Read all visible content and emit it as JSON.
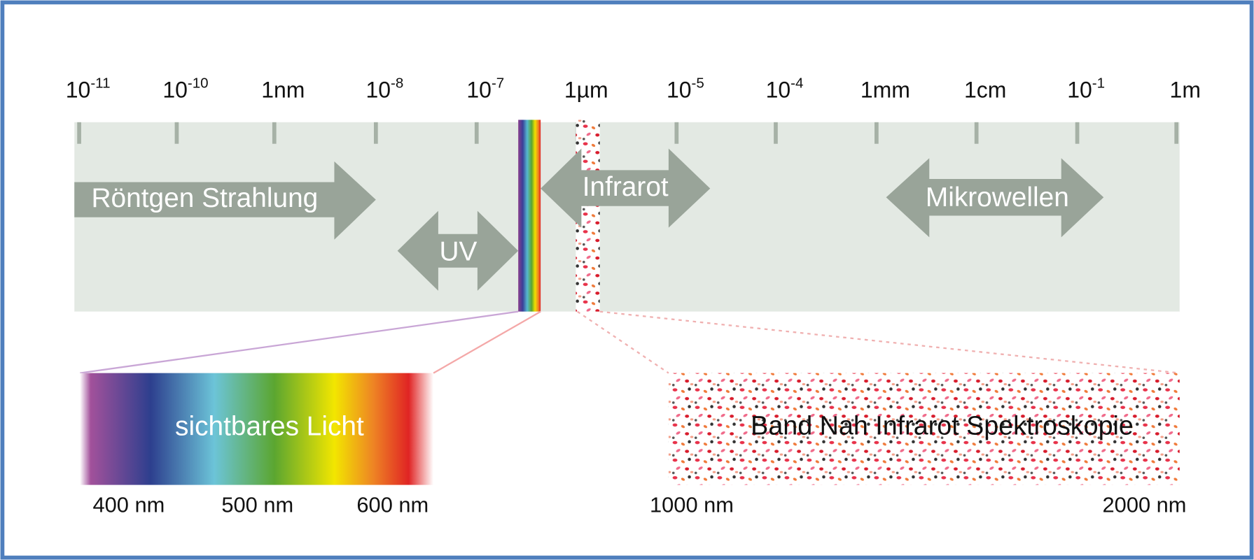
{
  "scale": {
    "ticks": [
      {
        "base": "10",
        "exp": "-11"
      },
      {
        "base": "10",
        "exp": "-10"
      },
      {
        "text": "1nm"
      },
      {
        "base": "10",
        "exp": "-8"
      },
      {
        "base": "10",
        "exp": "-7"
      },
      {
        "text": "1µm"
      },
      {
        "base": "10",
        "exp": "-5"
      },
      {
        "base": "10",
        "exp": "-4"
      },
      {
        "text": "1mm"
      },
      {
        "text": "1cm"
      },
      {
        "base": "10",
        "exp": "-1"
      },
      {
        "text": "1m"
      }
    ]
  },
  "bands": {
    "xray": "Röntgen Strahlung",
    "uv": "UV",
    "infrared": "Infrarot",
    "microwave": "Mikrowellen"
  },
  "visible": {
    "label": "sichtbares Licht",
    "ticks": [
      "400 nm",
      "500 nm",
      "600 nm"
    ]
  },
  "nir": {
    "label": "Band Nah Infrarot Spektroskopie",
    "ticks": [
      "1000 nm",
      "2000 nm"
    ]
  }
}
